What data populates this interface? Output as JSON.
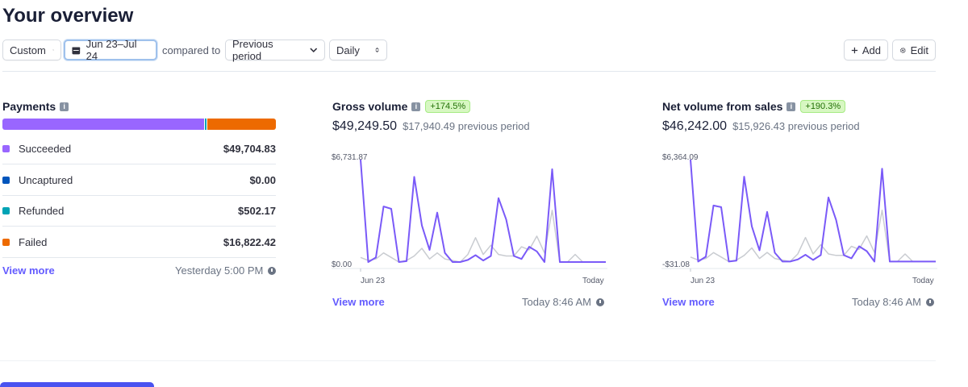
{
  "page": {
    "title": "Your overview"
  },
  "toolbar": {
    "range_type": "Custom",
    "date_range": "Jun 23–Jul 24",
    "compared_to": "compared to",
    "compare_option": "Previous period",
    "interval": "Daily",
    "add_label": "Add",
    "edit_label": "Edit"
  },
  "payments": {
    "title": "Payments",
    "segments": [
      {
        "label": "Succeeded",
        "value": 49704.83,
        "color": "#9966ff"
      },
      {
        "label": "Uncaptured",
        "value": 0.0,
        "color": "#0055bc"
      },
      {
        "label": "Refunded",
        "value": 502.17,
        "color": "#00a3b5"
      },
      {
        "label": "Failed",
        "value": 16822.42,
        "color": "#ed6a00"
      }
    ],
    "rows": [
      {
        "label": "Succeeded",
        "value": "$49,704.83",
        "color": "#9966ff"
      },
      {
        "label": "Uncaptured",
        "value": "$0.00",
        "color": "#0055bc"
      },
      {
        "label": "Refunded",
        "value": "$502.17",
        "color": "#00a3b5"
      },
      {
        "label": "Failed",
        "value": "$16,822.42",
        "color": "#ed6a00"
      }
    ],
    "view_more": "View more",
    "updated": "Yesterday 5:00 PM"
  },
  "gross": {
    "title": "Gross volume",
    "badge": "+174.5%",
    "amount": "$49,249.50",
    "previous": "$17,940.49 previous period",
    "ymax_label": "$6,731.87",
    "ymin_label": "$0.00",
    "x_start": "Jun 23",
    "x_end": "Today",
    "view_more": "View more",
    "updated": "Today 8:46 AM"
  },
  "net": {
    "title": "Net volume from sales",
    "badge": "+190.3%",
    "amount": "$46,242.00",
    "previous": "$15,926.43 previous period",
    "ymax_label": "$6,364.09",
    "ymin_label": "-$31.08",
    "x_start": "Jun 23",
    "x_end": "Today",
    "view_more": "View more",
    "updated": "Today 8:46 AM"
  },
  "chart_data": [
    {
      "type": "line",
      "title": "Gross volume",
      "ylim": [
        0,
        6731.87
      ],
      "x_labels": [
        "Jun 23",
        "Today"
      ],
      "series": [
        {
          "values": [
            6731.87,
            0,
            300,
            3650,
            3500,
            0,
            60,
            5600,
            2400,
            800,
            3250,
            600,
            0,
            0,
            140,
            450,
            100,
            400,
            4200,
            2800,
            400,
            200,
            1000,
            700,
            0,
            6100,
            0,
            0,
            0,
            0,
            0,
            0,
            0
          ],
          "color": "#7a5af8"
        },
        {
          "values": [
            300,
            100,
            200,
            600,
            300,
            0,
            100,
            400,
            900,
            200,
            600,
            200,
            100,
            0,
            500,
            1600,
            500,
            1100,
            500,
            400,
            400,
            1000,
            800,
            1700,
            600,
            3400,
            0,
            0,
            500,
            0,
            0,
            0,
            0
          ],
          "color": "#c9ccd1"
        }
      ]
    },
    {
      "type": "line",
      "title": "Net volume from sales",
      "ylim": [
        -31.08,
        6364.09
      ],
      "x_labels": [
        "Jun 23",
        "Today"
      ],
      "series": [
        {
          "values": [
            6364.09,
            0,
            300,
            3500,
            3400,
            0,
            60,
            5300,
            2200,
            700,
            3100,
            550,
            0,
            0,
            130,
            420,
            100,
            400,
            4000,
            2600,
            400,
            200,
            950,
            650,
            0,
            5800,
            0,
            0,
            0,
            0,
            0,
            0,
            0
          ],
          "color": "#7a5af8"
        },
        {
          "values": [
            280,
            90,
            190,
            560,
            280,
            0,
            90,
            380,
            850,
            190,
            570,
            190,
            90,
            0,
            470,
            1500,
            470,
            1050,
            470,
            380,
            380,
            950,
            760,
            1600,
            570,
            3200,
            0,
            0,
            470,
            0,
            0,
            0,
            0
          ],
          "color": "#c9ccd1"
        }
      ]
    }
  ]
}
